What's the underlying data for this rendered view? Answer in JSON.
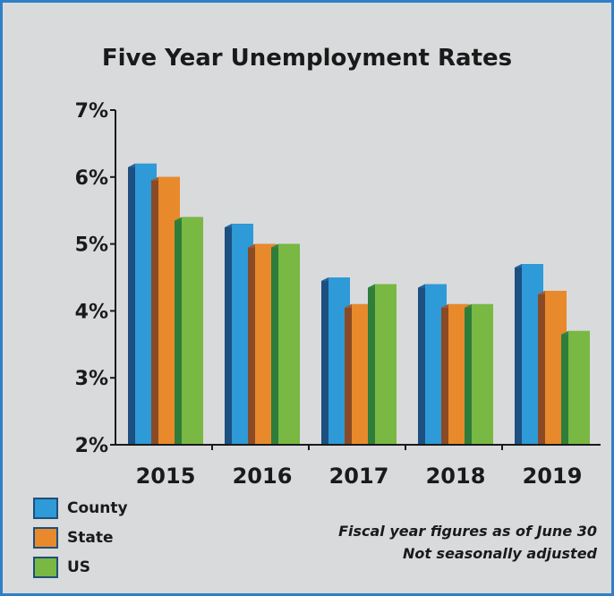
{
  "chart_data": {
    "type": "bar",
    "title": "Five Year Unemployment Rates",
    "categories": [
      "2015",
      "2016",
      "2017",
      "2018",
      "2019"
    ],
    "series": [
      {
        "name": "County",
        "values": [
          6.2,
          5.3,
          4.5,
          4.4,
          4.7
        ]
      },
      {
        "name": "State",
        "values": [
          6.0,
          5.0,
          4.1,
          4.1,
          4.3
        ]
      },
      {
        "name": "US",
        "values": [
          5.4,
          5.0,
          4.4,
          4.1,
          3.7
        ]
      }
    ],
    "yticks": [
      "2%",
      "3%",
      "4%",
      "5%",
      "6%",
      "7%"
    ],
    "ylim": [
      2,
      7
    ],
    "grid": false,
    "legend_position": "bottom-left",
    "colors": {
      "County": {
        "front": "#2e9ad7",
        "side": "#1d4f80",
        "top": "#23649f"
      },
      "State": {
        "front": "#e88a2c",
        "side": "#8a4a25",
        "top": "#a55a2f"
      },
      "US": {
        "front": "#79b843",
        "side": "#2f7d3a",
        "top": "#2e8a3e"
      }
    },
    "notes": [
      "Fiscal year figures as of June 30",
      "Not seasonally adjusted"
    ]
  }
}
